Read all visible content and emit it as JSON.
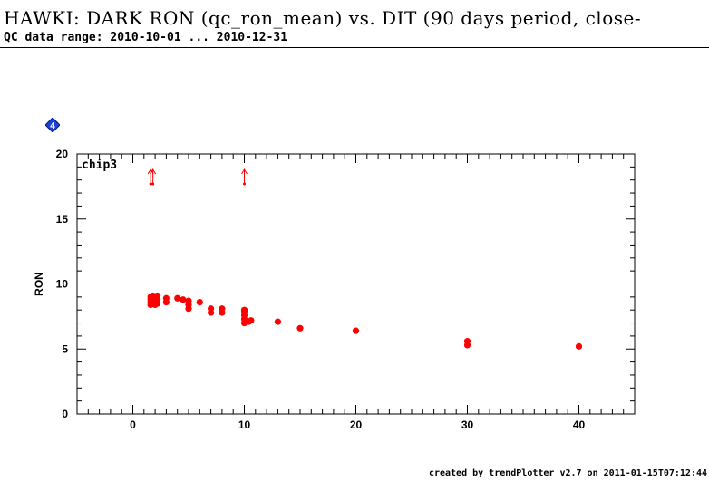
{
  "header": {
    "title": "HAWKI: DARK RON (qc_ron_mean) vs. DIT (90 days period, close-",
    "subtitle": "QC data range: 2010-10-01 ... 2010-12-31"
  },
  "marker": {
    "label": "4",
    "color": "#1a3fd6"
  },
  "footer": {
    "text": "created by trendPlotter v2.7 on 2011-01-15T07:12:44"
  },
  "chart_data": {
    "type": "scatter",
    "panel_label": "chip3",
    "ylabel": "RON",
    "xlabel": "",
    "xlim": [
      -5,
      45
    ],
    "ylim": [
      0,
      20
    ],
    "xticks": [
      0,
      10,
      20,
      30,
      40
    ],
    "yticks": [
      0,
      5,
      10,
      15,
      20
    ],
    "color": "#ff0000",
    "points": [
      {
        "x": 1.6,
        "y": 8.4
      },
      {
        "x": 1.6,
        "y": 8.6
      },
      {
        "x": 1.6,
        "y": 8.8
      },
      {
        "x": 1.6,
        "y": 9.0
      },
      {
        "x": 1.8,
        "y": 8.5
      },
      {
        "x": 1.8,
        "y": 8.7
      },
      {
        "x": 1.8,
        "y": 8.9
      },
      {
        "x": 1.8,
        "y": 9.1
      },
      {
        "x": 2.0,
        "y": 8.4
      },
      {
        "x": 2.0,
        "y": 8.6
      },
      {
        "x": 2.0,
        "y": 8.8
      },
      {
        "x": 2.0,
        "y": 9.0
      },
      {
        "x": 2.2,
        "y": 8.5
      },
      {
        "x": 2.2,
        "y": 8.8
      },
      {
        "x": 2.2,
        "y": 9.1
      },
      {
        "x": 3.0,
        "y": 8.6
      },
      {
        "x": 3.0,
        "y": 8.9
      },
      {
        "x": 4.0,
        "y": 8.9
      },
      {
        "x": 4.5,
        "y": 8.8
      },
      {
        "x": 5.0,
        "y": 8.1
      },
      {
        "x": 5.0,
        "y": 8.4
      },
      {
        "x": 5.0,
        "y": 8.7
      },
      {
        "x": 6.0,
        "y": 8.6
      },
      {
        "x": 7.0,
        "y": 7.8
      },
      {
        "x": 7.0,
        "y": 8.1
      },
      {
        "x": 8.0,
        "y": 7.8
      },
      {
        "x": 8.0,
        "y": 8.1
      },
      {
        "x": 10.0,
        "y": 7.0
      },
      {
        "x": 10.0,
        "y": 7.3
      },
      {
        "x": 10.0,
        "y": 7.6
      },
      {
        "x": 10.0,
        "y": 7.9
      },
      {
        "x": 10.0,
        "y": 8.0
      },
      {
        "x": 10.4,
        "y": 7.1
      },
      {
        "x": 10.6,
        "y": 7.2
      },
      {
        "x": 13.0,
        "y": 7.1
      },
      {
        "x": 15.0,
        "y": 6.6
      },
      {
        "x": 20.0,
        "y": 6.4
      },
      {
        "x": 30.0,
        "y": 5.3
      },
      {
        "x": 30.0,
        "y": 5.6
      },
      {
        "x": 40.0,
        "y": 5.2
      }
    ],
    "off_scale_up_x": [
      1.6,
      1.8,
      10.0
    ]
  }
}
